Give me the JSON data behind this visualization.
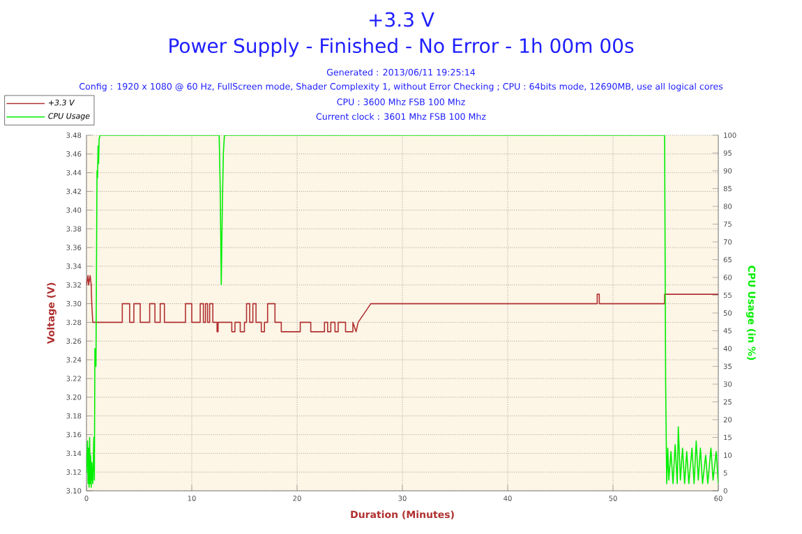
{
  "chart_data": {
    "type": "line",
    "title": "+3.3 V",
    "subtitle": "Power Supply - Finished - No Error - 1h 00m 00s",
    "annotations": [
      "Generated : 2013/06/11 19:25:14",
      "Config : 1920 x 1080 @ 60 Hz, FullScreen mode, Shader Complexity 1, without Error Checking ; CPU : 64bits mode, 12690MB, use all logical cores",
      "CPU : 3600 Mhz FSB 100 Mhz",
      "Current clock : 3601 Mhz FSB 100 Mhz"
    ],
    "xlabel": "Duration (Minutes)",
    "ylabel": "Voltage (V)",
    "y2label": "CPU Usage (in %)",
    "xlim": [
      0,
      60
    ],
    "xticks": [
      0,
      10,
      20,
      30,
      40,
      50,
      60
    ],
    "ylim": [
      3.1,
      3.48
    ],
    "yticks": [
      {
        "value": 3.1,
        "label": "3.10"
      },
      {
        "value": 3.12,
        "label": "3.12"
      },
      {
        "value": 3.14,
        "label": "3.14"
      },
      {
        "value": 3.16,
        "label": "3.16"
      },
      {
        "value": 3.18,
        "label": "3.18"
      },
      {
        "value": 3.2,
        "label": "3.20"
      },
      {
        "value": 3.22,
        "label": "3.22"
      },
      {
        "value": 3.24,
        "label": "3.24"
      },
      {
        "value": 3.26,
        "label": "3.26"
      },
      {
        "value": 3.28,
        "label": "3.28"
      },
      {
        "value": 3.3,
        "label": "3.30"
      },
      {
        "value": 3.32,
        "label": "3.32"
      },
      {
        "value": 3.34,
        "label": "3.34"
      },
      {
        "value": 3.36,
        "label": "3.36"
      },
      {
        "value": 3.38,
        "label": "3.38"
      },
      {
        "value": 3.4,
        "label": "3.40"
      },
      {
        "value": 3.42,
        "label": "3.42"
      },
      {
        "value": 3.44,
        "label": "3.44"
      },
      {
        "value": 3.46,
        "label": "3.46"
      },
      {
        "value": 3.48,
        "label": "3.48"
      }
    ],
    "y2lim": [
      0,
      100
    ],
    "y2ticks": [
      0,
      5,
      10,
      15,
      20,
      25,
      30,
      35,
      40,
      45,
      50,
      55,
      60,
      65,
      70,
      75,
      80,
      85,
      90,
      95,
      100
    ],
    "grid": true,
    "legend": "top left",
    "marker": "none",
    "line_style": "solid",
    "series": [
      {
        "name": "+3.3 V",
        "color": "#b03030",
        "x": [
          0,
          0.15,
          0.2,
          0.35,
          0.45,
          0.5,
          0.6,
          3.4,
          3.4,
          4.1,
          4.1,
          4.5,
          4.5,
          5.1,
          5.1,
          6.0,
          6.0,
          6.5,
          6.5,
          7.0,
          7.0,
          7.4,
          7.4,
          9.4,
          9.4,
          10.0,
          10.0,
          10.8,
          10.8,
          11.1,
          11.1,
          11.3,
          11.3,
          11.5,
          11.5,
          11.7,
          11.7,
          12.0,
          12.0,
          12.4,
          12.4,
          12.5,
          12.5,
          13.8,
          13.8,
          14.1,
          14.1,
          14.6,
          14.6,
          15.0,
          15.0,
          15.2,
          15.2,
          15.5,
          15.5,
          15.8,
          15.8,
          16.1,
          16.1,
          16.6,
          16.6,
          16.9,
          16.9,
          17.2,
          17.2,
          17.9,
          17.9,
          18.5,
          18.5,
          20.3,
          20.3,
          21.3,
          21.3,
          22.6,
          22.6,
          22.9,
          22.9,
          23.2,
          23.2,
          23.6,
          23.6,
          23.9,
          23.9,
          24.6,
          24.6,
          25.3,
          25.3,
          25.6,
          25.8,
          27.0,
          48.5,
          48.5,
          48.7,
          48.7,
          54.9,
          54.9,
          60
        ],
        "values": [
          3.32,
          3.33,
          3.32,
          3.33,
          3.32,
          3.3,
          3.28,
          3.28,
          3.3,
          3.3,
          3.28,
          3.28,
          3.3,
          3.3,
          3.28,
          3.28,
          3.3,
          3.3,
          3.28,
          3.28,
          3.3,
          3.3,
          3.28,
          3.28,
          3.3,
          3.3,
          3.28,
          3.28,
          3.3,
          3.3,
          3.28,
          3.28,
          3.3,
          3.3,
          3.28,
          3.28,
          3.3,
          3.3,
          3.28,
          3.28,
          3.27,
          3.27,
          3.28,
          3.28,
          3.27,
          3.27,
          3.28,
          3.28,
          3.27,
          3.27,
          3.28,
          3.28,
          3.3,
          3.3,
          3.28,
          3.28,
          3.3,
          3.3,
          3.28,
          3.28,
          3.27,
          3.27,
          3.28,
          3.28,
          3.3,
          3.3,
          3.28,
          3.28,
          3.27,
          3.27,
          3.28,
          3.28,
          3.27,
          3.27,
          3.28,
          3.28,
          3.27,
          3.27,
          3.28,
          3.28,
          3.27,
          3.27,
          3.28,
          3.28,
          3.27,
          3.27,
          3.28,
          3.27,
          3.28,
          3.3,
          3.3,
          3.31,
          3.31,
          3.3,
          3.3,
          3.31,
          3.31
        ]
      },
      {
        "name": "CPU Usage",
        "color": "#00ee00",
        "axis": "y2",
        "x": [
          0,
          0.1,
          0.15,
          0.2,
          0.25,
          0.3,
          0.35,
          0.4,
          0.45,
          0.5,
          0.6,
          0.7,
          0.75,
          0.8,
          0.9,
          1.0,
          1.05,
          1.1,
          1.15,
          1.2,
          1.3,
          12.6,
          12.7,
          12.8,
          12.9,
          13.0,
          13.1,
          54.9,
          55.0,
          55.1,
          55.2,
          55.3,
          55.5,
          55.7,
          55.9,
          56.1,
          56.2,
          56.4,
          56.6,
          56.8,
          57.0,
          57.2,
          57.5,
          57.7,
          57.9,
          58.1,
          58.3,
          58.5,
          58.8,
          59.0,
          59.3,
          59.5,
          59.8,
          60
        ],
        "values": [
          5,
          14,
          2,
          12,
          1,
          15,
          2,
          10,
          1,
          8,
          2,
          15,
          3,
          40,
          35,
          90,
          88,
          97,
          92,
          99,
          100,
          100,
          85,
          58,
          80,
          95,
          100,
          100,
          30,
          2,
          12,
          3,
          11,
          2,
          13,
          2,
          18,
          3,
          12,
          2,
          11,
          2,
          12,
          2,
          14,
          3,
          12,
          2,
          10,
          2,
          12,
          3,
          11,
          2
        ]
      }
    ]
  }
}
